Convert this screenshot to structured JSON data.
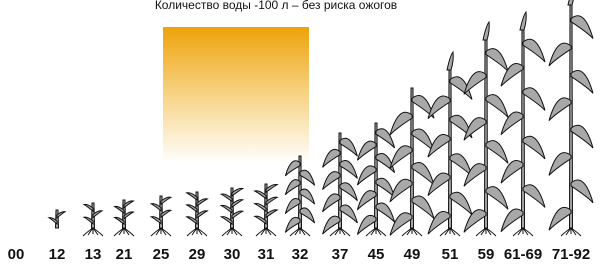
{
  "title": "Количество воды -100 л – без риска ожогов",
  "stages": [
    "00",
    "12",
    "13",
    "21",
    "25",
    "29",
    "30",
    "31",
    "32",
    "37",
    "45",
    "49",
    "51",
    "59",
    "61-69",
    "71-92"
  ]
}
